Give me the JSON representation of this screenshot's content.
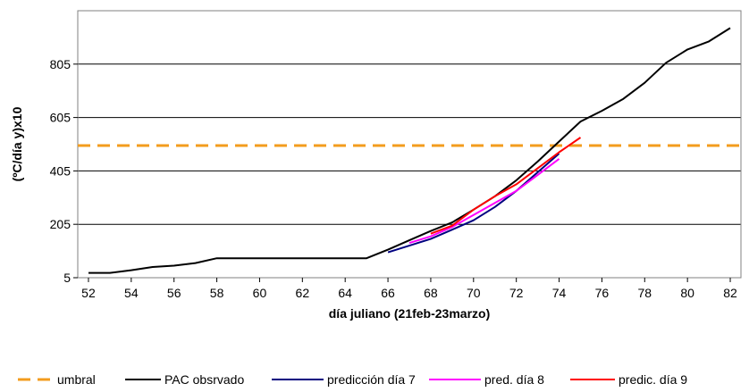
{
  "chart_data": {
    "type": "line",
    "title": "",
    "xlabel": "día juliano (21feb-23marzo)",
    "ylabel": "(ºC/día  y)x10",
    "xlim": [
      51.5,
      82.5
    ],
    "ylim": [
      5,
      1005
    ],
    "x_ticks": [
      52,
      54,
      56,
      58,
      60,
      62,
      64,
      66,
      68,
      70,
      72,
      74,
      76,
      78,
      80,
      82
    ],
    "y_ticks": [
      5,
      205,
      405,
      605,
      805
    ],
    "grid": "horizontal",
    "legend_position": "bottom",
    "series": [
      {
        "name": "umbral",
        "color": "#f39c1e",
        "style": "dashed",
        "x": [
          51.5,
          82.5
        ],
        "y": [
          500,
          500
        ]
      },
      {
        "name": "PAC obsrvado",
        "color": "#000000",
        "style": "solid",
        "x": [
          52,
          53,
          54,
          55,
          56,
          57,
          58,
          59,
          60,
          61,
          62,
          63,
          64,
          65,
          66,
          67,
          68,
          69,
          70,
          71,
          72,
          73,
          74,
          75,
          76,
          77,
          78,
          79,
          80,
          81,
          82
        ],
        "y": [
          23,
          23,
          33,
          45,
          50,
          60,
          78,
          78,
          78,
          78,
          78,
          78,
          78,
          78,
          110,
          145,
          180,
          212,
          260,
          310,
          370,
          440,
          515,
          590,
          630,
          675,
          735,
          810,
          860,
          890,
          940
        ]
      },
      {
        "name": "predicción día 7",
        "color": "#000080",
        "style": "solid",
        "x": [
          66,
          67,
          68,
          69,
          70,
          71,
          72,
          73,
          74
        ],
        "y": [
          100,
          125,
          150,
          185,
          220,
          270,
          330,
          400,
          470
        ]
      },
      {
        "name": "pred. día 8",
        "color": "#ff00ff",
        "style": "solid",
        "x": [
          67,
          68,
          69,
          70,
          71,
          72,
          73,
          74
        ],
        "y": [
          135,
          160,
          195,
          240,
          285,
          330,
          390,
          450
        ]
      },
      {
        "name": "predic. día 9",
        "color": "#ff0000",
        "style": "solid",
        "x": [
          68,
          69,
          70,
          71,
          72,
          73,
          74,
          75
        ],
        "y": [
          170,
          200,
          260,
          310,
          355,
          415,
          475,
          530
        ]
      }
    ]
  }
}
